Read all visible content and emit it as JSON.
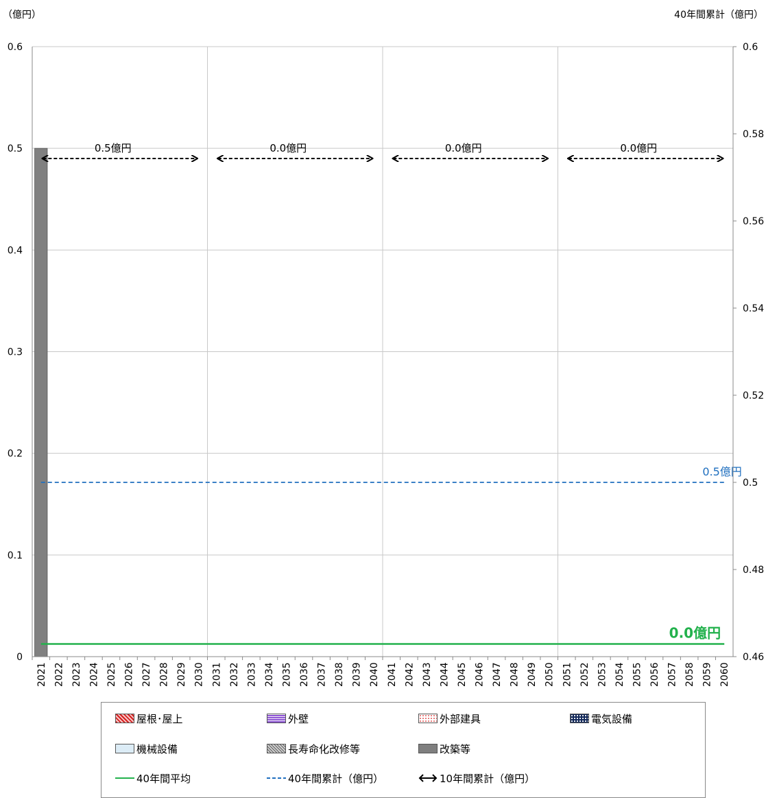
{
  "left_axis_title": "（億円）",
  "right_axis_title": "40年間累計（億円）",
  "chart_data": {
    "type": "bar",
    "categories": [
      "2021",
      "2022",
      "2023",
      "2024",
      "2025",
      "2026",
      "2027",
      "2028",
      "2029",
      "2030",
      "2031",
      "2032",
      "2033",
      "2034",
      "2035",
      "2036",
      "2037",
      "2038",
      "2039",
      "2040",
      "2041",
      "2042",
      "2043",
      "2044",
      "2045",
      "2046",
      "2047",
      "2048",
      "2049",
      "2050",
      "2051",
      "2052",
      "2053",
      "2054",
      "2055",
      "2056",
      "2057",
      "2058",
      "2059",
      "2060"
    ],
    "series": [
      {
        "name": "屋根・屋上",
        "values": [
          0,
          0,
          0,
          0,
          0,
          0,
          0,
          0,
          0,
          0,
          0,
          0,
          0,
          0,
          0,
          0,
          0,
          0,
          0,
          0,
          0,
          0,
          0,
          0,
          0,
          0,
          0,
          0,
          0,
          0,
          0,
          0,
          0,
          0,
          0,
          0,
          0,
          0,
          0,
          0
        ]
      },
      {
        "name": "外壁",
        "values": [
          0,
          0,
          0,
          0,
          0,
          0,
          0,
          0,
          0,
          0,
          0,
          0,
          0,
          0,
          0,
          0,
          0,
          0,
          0,
          0,
          0,
          0,
          0,
          0,
          0,
          0,
          0,
          0,
          0,
          0,
          0,
          0,
          0,
          0,
          0,
          0,
          0,
          0,
          0,
          0
        ]
      },
      {
        "name": "外部建具",
        "values": [
          0,
          0,
          0,
          0,
          0,
          0,
          0,
          0,
          0,
          0,
          0,
          0,
          0,
          0,
          0,
          0,
          0,
          0,
          0,
          0,
          0,
          0,
          0,
          0,
          0,
          0,
          0,
          0,
          0,
          0,
          0,
          0,
          0,
          0,
          0,
          0,
          0,
          0,
          0,
          0
        ]
      },
      {
        "name": "電気設備",
        "values": [
          0,
          0,
          0,
          0,
          0,
          0,
          0,
          0,
          0,
          0,
          0,
          0,
          0,
          0,
          0,
          0,
          0,
          0,
          0,
          0,
          0,
          0,
          0,
          0,
          0,
          0,
          0,
          0,
          0,
          0,
          0,
          0,
          0,
          0,
          0,
          0,
          0,
          0,
          0,
          0
        ]
      },
      {
        "name": "機械設備",
        "values": [
          0,
          0,
          0,
          0,
          0,
          0,
          0,
          0,
          0,
          0,
          0,
          0,
          0,
          0,
          0,
          0,
          0,
          0,
          0,
          0,
          0,
          0,
          0,
          0,
          0,
          0,
          0,
          0,
          0,
          0,
          0,
          0,
          0,
          0,
          0,
          0,
          0,
          0,
          0,
          0
        ]
      },
      {
        "name": "長寿命化改修等",
        "values": [
          0,
          0,
          0,
          0,
          0,
          0,
          0,
          0,
          0,
          0,
          0,
          0,
          0,
          0,
          0,
          0,
          0,
          0,
          0,
          0,
          0,
          0,
          0,
          0,
          0,
          0,
          0,
          0,
          0,
          0,
          0,
          0,
          0,
          0,
          0,
          0,
          0,
          0,
          0,
          0
        ]
      },
      {
        "name": "改築等",
        "values": [
          0.5,
          0,
          0,
          0,
          0,
          0,
          0,
          0,
          0,
          0,
          0,
          0,
          0,
          0,
          0,
          0,
          0,
          0,
          0,
          0,
          0,
          0,
          0,
          0,
          0,
          0,
          0,
          0,
          0,
          0,
          0,
          0,
          0,
          0,
          0,
          0,
          0,
          0,
          0,
          0
        ]
      }
    ],
    "average_40yr": {
      "name": "40年間平均",
      "value": 0.0125,
      "label": "0.0億円",
      "color": "#22b14c"
    },
    "cumulative_40yr": {
      "name": "40年間累計（億円）",
      "value": 0.5,
      "label": "0.5億円",
      "color": "#1f6fbf"
    },
    "decade_totals": {
      "name": "10年間累計（億円）",
      "items": [
        {
          "from": "2021",
          "to": "2030",
          "label": "0.5億円"
        },
        {
          "from": "2031",
          "to": "2040",
          "label": "0.0億円"
        },
        {
          "from": "2041",
          "to": "2050",
          "label": "0.0億円"
        },
        {
          "from": "2051",
          "to": "2060",
          "label": "0.0億円"
        }
      ]
    },
    "ylim": [
      0,
      0.6
    ],
    "yticks": [
      "0",
      "0.1",
      "0.2",
      "0.3",
      "0.4",
      "0.5",
      "0.6"
    ],
    "y2lim": [
      0.46,
      0.6
    ],
    "y2ticks": [
      "0.46",
      "0.48",
      "0.5",
      "0.52",
      "0.54",
      "0.56",
      "0.58",
      "0.6"
    ],
    "bar_color": "#808080",
    "grid": true,
    "legend_position": "bottom"
  },
  "legend": [
    {
      "label": "屋根･屋上",
      "kind": "swatch",
      "fill": "#f4a6a6",
      "pattern": "diag-red"
    },
    {
      "label": "外壁",
      "kind": "swatch",
      "fill": "#b48ae0",
      "pattern": "grid-purple"
    },
    {
      "label": "外部建具",
      "kind": "swatch",
      "fill": "#fde8e8",
      "pattern": "dots-red"
    },
    {
      "label": "電気設備",
      "kind": "swatch",
      "fill": "#1a2d5a",
      "pattern": "dots-navy"
    },
    {
      "label": "機械設備",
      "kind": "swatch",
      "fill": "#dcecf6",
      "pattern": "plain-lightblue"
    },
    {
      "label": "長寿命化改修等",
      "kind": "swatch",
      "fill": "#b0b0b0",
      "pattern": "cross-gray"
    },
    {
      "label": "改築等",
      "kind": "swatch",
      "fill": "#7f7f7f",
      "pattern": "solid-gray"
    },
    {
      "label": "40年間平均",
      "kind": "solid-line",
      "fill": "#22b14c"
    },
    {
      "label": "40年間累計（億円）",
      "kind": "dashed-line",
      "fill": "#1f6fbf"
    },
    {
      "label": "10年間累計（億円）",
      "kind": "arrow",
      "fill": "#000000"
    }
  ]
}
